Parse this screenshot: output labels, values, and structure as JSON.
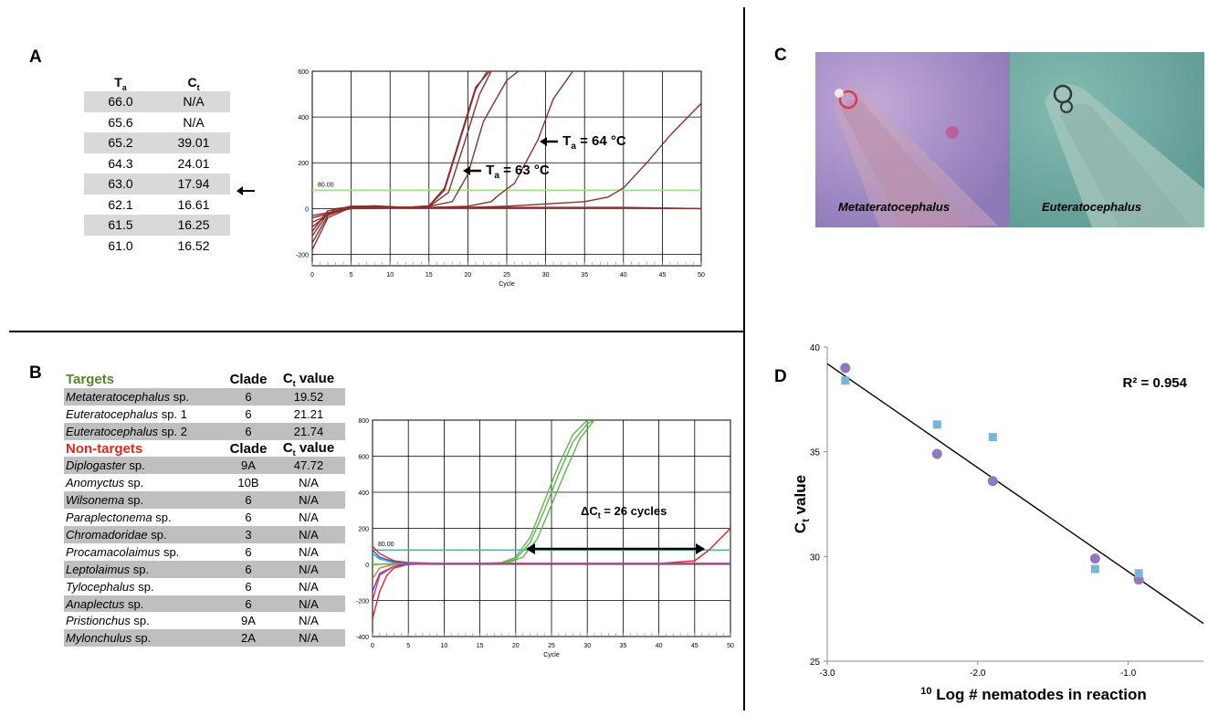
{
  "panels": {
    "a_letter": "A",
    "b_letter": "B",
    "c_letter": "C",
    "d_letter": "D"
  },
  "panel_a": {
    "table": {
      "headers": [
        "Ta",
        "Ct"
      ],
      "rows": [
        {
          "ta": "66.0",
          "ct": "N/A"
        },
        {
          "ta": "65.6",
          "ct": "N/A"
        },
        {
          "ta": "65.2",
          "ct": "39.01"
        },
        {
          "ta": "64.3",
          "ct": "24.01"
        },
        {
          "ta": "63.0",
          "ct": "17.94"
        },
        {
          "ta": "62.1",
          "ct": "16.61"
        },
        {
          "ta": "61.5",
          "ct": "16.25"
        },
        {
          "ta": "61.0",
          "ct": "16.52"
        }
      ]
    },
    "annotation_63": "T",
    "annotation_63_sub": "a",
    "annotation_63_val": " = 63 °C",
    "annotation_64": "T",
    "annotation_64_sub": "a",
    "annotation_64_val": " = 64 °C",
    "threshold_label": "80.00"
  },
  "panel_b": {
    "targets_header": "Targets",
    "nontargets_header": "Non-targets",
    "clade_header": "Clade",
    "ct_header": "C",
    "ct_header_sub": "t",
    "ct_header_tail": " value",
    "targets": [
      {
        "genus": "Metateratocephalus",
        "rest": " sp.",
        "clade": "6",
        "ct": "19.52"
      },
      {
        "genus": "Euteratocephalus",
        "rest": " sp. 1",
        "clade": "6",
        "ct": "21.21"
      },
      {
        "genus": "Euteratocephalus",
        "rest": " sp. 2",
        "clade": "6",
        "ct": "21.74"
      }
    ],
    "nontargets": [
      {
        "genus": "Diplogaster",
        "rest": " sp.",
        "clade": "9A",
        "ct": "47.72"
      },
      {
        "genus": "Anomyctus",
        "rest": " sp.",
        "clade": "10B",
        "ct": "N/A"
      },
      {
        "genus": "Wilsonema",
        "rest": " sp.",
        "clade": "6",
        "ct": "N/A"
      },
      {
        "genus": "Paraplectonema",
        "rest": " sp.",
        "clade": "6",
        "ct": "N/A"
      },
      {
        "genus": "Chromadoridae",
        "rest": " sp.",
        "clade": "3",
        "ct": "N/A"
      },
      {
        "genus": "Procamacolaimus",
        "rest": " sp.",
        "clade": "6",
        "ct": "N/A"
      },
      {
        "genus": "Leptolaimus",
        "rest": " sp.",
        "clade": "6",
        "ct": "N/A"
      },
      {
        "genus": "Tylocephalus",
        "rest": " sp.",
        "clade": "6",
        "ct": "N/A"
      },
      {
        "genus": "Anaplectus",
        "rest": " sp.",
        "clade": "6",
        "ct": "N/A"
      },
      {
        "genus": "Pristionchus",
        "rest": " sp.",
        "clade": "9A",
        "ct": "N/A"
      },
      {
        "genus": "Mylonchulus",
        "rest": " sp.",
        "clade": "2A",
        "ct": "N/A"
      }
    ],
    "delta_label": "ΔC",
    "delta_sub": "t",
    "delta_tail": " = 26 cycles",
    "threshold_label": "80.00"
  },
  "panel_c": {
    "left_label": "Metateratocephalus",
    "right_label": "Euteratocephalus",
    "left_color": "#a58fc6",
    "right_color": "#6fa8a0"
  },
  "chart_data": [
    {
      "type": "line",
      "panel": "A",
      "xlabel": "Cycle",
      "ylabel": "",
      "xlim": [
        0,
        50
      ],
      "ylim": [
        -250,
        600
      ],
      "x_ticks": [
        0,
        5,
        10,
        15,
        20,
        25,
        30,
        35,
        40,
        45,
        50
      ],
      "y_ticks": [
        -200,
        0,
        200,
        400,
        600
      ],
      "threshold": 80.0,
      "series_color": "#8c2f2f",
      "threshold_color": "#9ee08a",
      "series": [
        {
          "x": [
            0,
            2,
            5,
            8,
            12,
            15,
            17,
            19,
            21,
            22.5
          ],
          "y": [
            -180,
            -40,
            5,
            10,
            5,
            10,
            80,
            300,
            520,
            600
          ]
        },
        {
          "x": [
            0,
            2,
            5,
            8,
            12,
            15,
            17,
            19,
            21,
            22.8
          ],
          "y": [
            -150,
            -30,
            8,
            12,
            5,
            12,
            90,
            310,
            530,
            600
          ]
        },
        {
          "x": [
            0,
            2,
            5,
            8,
            12,
            15,
            17.5,
            19.5,
            21.5,
            23
          ],
          "y": [
            -120,
            -20,
            10,
            8,
            5,
            8,
            70,
            280,
            500,
            600
          ]
        },
        {
          "x": [
            0,
            2,
            5,
            8,
            12,
            15,
            18,
            20,
            22,
            25,
            26.5
          ],
          "y": [
            -100,
            -10,
            10,
            10,
            5,
            10,
            30,
            150,
            380,
            560,
            600
          ]
        },
        {
          "x": [
            0,
            3,
            6,
            10,
            15,
            20,
            23,
            24,
            26,
            29,
            31,
            33.5
          ],
          "y": [
            -80,
            0,
            10,
            5,
            5,
            10,
            30,
            60,
            110,
            300,
            480,
            600
          ]
        },
        {
          "x": [
            0,
            4,
            8,
            15,
            20,
            25,
            30,
            35,
            38,
            40,
            43,
            46,
            50
          ],
          "y": [
            -60,
            0,
            5,
            5,
            5,
            10,
            20,
            30,
            50,
            90,
            200,
            320,
            460
          ]
        },
        {
          "x": [
            0,
            5,
            10,
            20,
            30,
            40,
            50
          ],
          "y": [
            -40,
            0,
            5,
            5,
            5,
            5,
            0
          ]
        },
        {
          "x": [
            0,
            5,
            10,
            20,
            30,
            40,
            50
          ],
          "y": [
            -30,
            0,
            2,
            2,
            2,
            2,
            0
          ]
        }
      ]
    },
    {
      "type": "line",
      "panel": "B",
      "xlabel": "Cycle",
      "ylabel": "",
      "xlim": [
        0,
        50
      ],
      "ylim": [
        -400,
        800
      ],
      "x_ticks": [
        0,
        5,
        10,
        15,
        20,
        25,
        30,
        35,
        40,
        45,
        50
      ],
      "y_ticks": [
        -400,
        -200,
        0,
        200,
        400,
        600,
        800
      ],
      "threshold": 80.0,
      "threshold_color": "#59b3a6",
      "series": [
        {
          "color": "#5cb84a",
          "x": [
            0,
            5,
            10,
            15,
            18,
            20,
            22,
            24,
            26,
            28,
            30
          ],
          "y": [
            0,
            5,
            5,
            5,
            10,
            40,
            150,
            350,
            550,
            720,
            800
          ]
        },
        {
          "color": "#5cb84a",
          "x": [
            0,
            5,
            10,
            15,
            18,
            20,
            22,
            24,
            26,
            28,
            30,
            31
          ],
          "y": [
            0,
            5,
            5,
            5,
            8,
            30,
            120,
            300,
            500,
            680,
            780,
            800
          ]
        },
        {
          "color": "#5cb84a",
          "x": [
            0,
            5,
            10,
            15,
            19,
            21,
            23,
            25,
            27,
            29,
            31
          ],
          "y": [
            0,
            5,
            5,
            5,
            10,
            40,
            140,
            330,
            520,
            700,
            800
          ]
        },
        {
          "color": "#e5261f",
          "x": [
            0,
            1,
            2,
            3,
            5,
            10,
            20,
            30,
            40,
            45,
            47,
            49,
            50
          ],
          "y": [
            -300,
            -150,
            -60,
            -20,
            0,
            5,
            5,
            5,
            5,
            20,
            80,
            160,
            200
          ]
        },
        {
          "color": "#e5261f",
          "x": [
            0,
            1,
            3,
            5,
            10,
            20,
            30,
            40,
            50
          ],
          "y": [
            100,
            60,
            20,
            10,
            5,
            5,
            5,
            5,
            5
          ]
        },
        {
          "color": "#3a4fd0",
          "x": [
            0,
            1,
            3,
            5,
            10,
            20,
            30,
            40,
            50
          ],
          "y": [
            80,
            40,
            15,
            5,
            5,
            5,
            5,
            5,
            5
          ]
        },
        {
          "color": "#7a3fb0",
          "x": [
            0,
            1,
            3,
            5,
            10,
            20,
            30,
            40,
            50
          ],
          "y": [
            -150,
            -50,
            -10,
            0,
            5,
            5,
            5,
            5,
            5
          ]
        },
        {
          "color": "#d87f2a",
          "x": [
            0,
            1,
            3,
            5,
            10,
            20,
            30,
            40,
            50
          ],
          "y": [
            -80,
            -20,
            0,
            5,
            5,
            5,
            5,
            5,
            5
          ]
        },
        {
          "color": "#2f9fc0",
          "x": [
            0,
            1,
            3,
            5,
            10,
            20,
            30,
            40,
            50
          ],
          "y": [
            60,
            30,
            10,
            5,
            5,
            5,
            5,
            5,
            5
          ]
        },
        {
          "color": "#c73a8f",
          "x": [
            0,
            1,
            3,
            5,
            10,
            20,
            30,
            40,
            50
          ],
          "y": [
            -200,
            -60,
            -10,
            5,
            5,
            5,
            5,
            5,
            5
          ]
        }
      ]
    },
    {
      "type": "scatter",
      "panel": "D",
      "xlabel": "10 Log # nematodes in reaction",
      "ylabel": "Ct value",
      "xlim": [
        -3.0,
        -0.5
      ],
      "ylim": [
        25,
        40
      ],
      "x_ticks": [
        -3.0,
        -2.0,
        -1.0
      ],
      "x_tick_labels": [
        "-3.0",
        "-2.0",
        "-1.0"
      ],
      "y_ticks": [
        25,
        30,
        35,
        40
      ],
      "annotation": "R² = 0.954",
      "trendline": {
        "x": [
          -3.0,
          -0.5
        ],
        "y": [
          39.2,
          26.8
        ]
      },
      "series": [
        {
          "marker": "circle",
          "color": "#8f79bf",
          "x": [
            -2.88,
            -2.27,
            -1.9,
            -1.22,
            -0.93
          ],
          "y": [
            39.0,
            34.9,
            33.6,
            29.9,
            28.9
          ]
        },
        {
          "marker": "square",
          "color": "#77b6d6",
          "x": [
            -2.88,
            -2.27,
            -1.9,
            -1.22,
            -0.93
          ],
          "y": [
            38.4,
            36.3,
            35.7,
            29.4,
            29.2
          ]
        }
      ]
    }
  ]
}
